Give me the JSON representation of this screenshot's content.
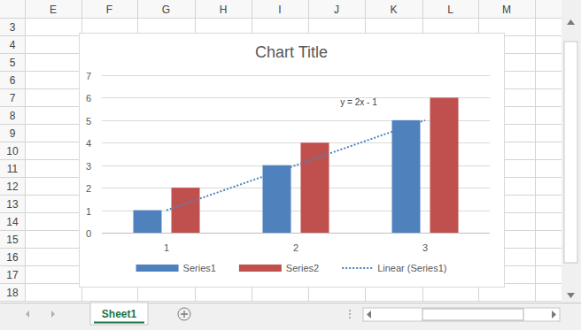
{
  "chart_data": {
    "type": "bar",
    "title": "Chart Title",
    "categories": [
      "1",
      "2",
      "3"
    ],
    "series": [
      {
        "name": "Series1",
        "color": "#4f81bd",
        "values": [
          1,
          3,
          5
        ]
      },
      {
        "name": "Series2",
        "color": "#c0504d",
        "values": [
          2,
          4,
          6
        ]
      },
      {
        "name": "Linear (Series1)",
        "type": "line",
        "line_style": "dotted",
        "color": "#4f81bd",
        "values": [
          1,
          3,
          5
        ]
      }
    ],
    "annotations": [
      "y = 2x - 1"
    ],
    "ylim": [
      0,
      7
    ],
    "yticks": [
      0,
      1,
      2,
      3,
      4,
      5,
      6,
      7
    ],
    "grid": true,
    "legend": "bottom"
  },
  "sheet": {
    "columns": [
      "E",
      "F",
      "G",
      "H",
      "I",
      "J",
      "K",
      "L",
      "M"
    ],
    "rows": [
      3,
      4,
      5,
      6,
      7,
      8,
      9,
      10,
      11,
      12,
      13,
      14,
      15,
      16,
      17,
      18
    ],
    "tab": "Sheet1"
  }
}
